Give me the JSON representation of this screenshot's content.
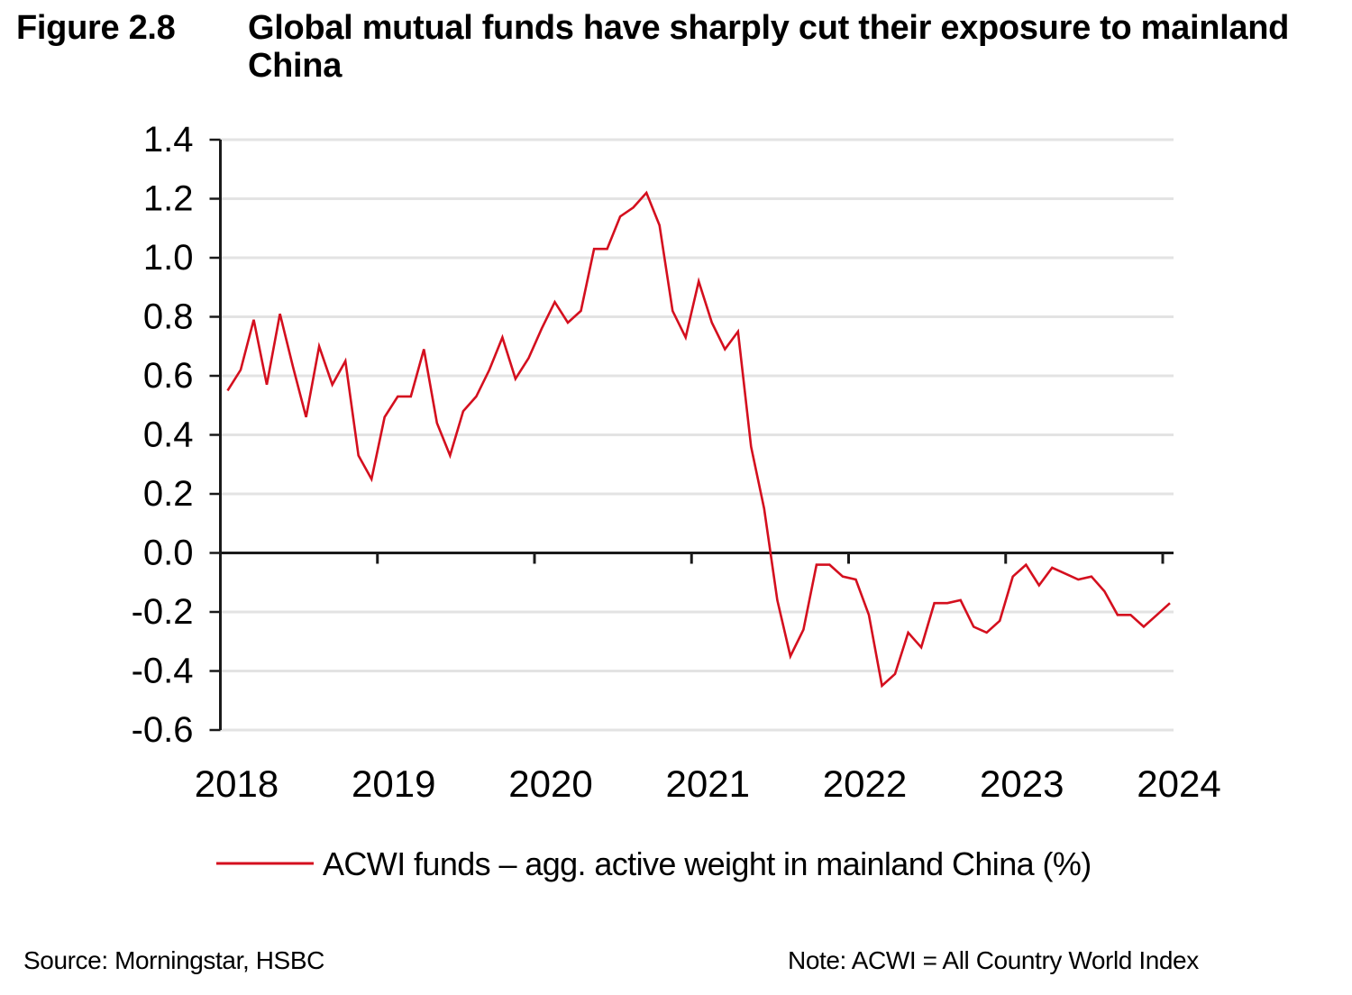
{
  "figure": {
    "number": "Figure 2.8",
    "title": "Global mutual funds have sharply cut their exposure to mainland China"
  },
  "footer": {
    "source": "Source: Morningstar, HSBC",
    "note": "Note: ACWI = All Country World Index"
  },
  "colors": {
    "series": "#d40f1e",
    "grid": "#e3e3e3",
    "axis": "#1a1a1a"
  },
  "chart_data": {
    "type": "line",
    "title": "Global mutual funds have sharply cut their exposure to mainland China",
    "xlabel": "",
    "ylabel": "",
    "ylim": [
      -0.6,
      1.4
    ],
    "yticks": [
      "1.4",
      "1.2",
      "1.0",
      "0.8",
      "0.6",
      "0.4",
      "0.2",
      "0.0",
      "-0.2",
      "-0.4",
      "-0.6"
    ],
    "ytick_values": [
      1.4,
      1.2,
      1.0,
      0.8,
      0.6,
      0.4,
      0.2,
      0.0,
      -0.2,
      -0.4,
      -0.6
    ],
    "xticks": [
      "2018",
      "2019",
      "2020",
      "2021",
      "2022",
      "2023",
      "2024"
    ],
    "xlim_months": [
      0,
      73
    ],
    "grid": true,
    "legend_position": "bottom-center",
    "x_unit": "monthly, Jan 2018 – Jan 2024",
    "series": [
      {
        "name": "ACWI funds – agg. active weight in mainland China (%)",
        "values": [
          0.55,
          0.62,
          0.79,
          0.57,
          0.81,
          0.63,
          0.46,
          0.7,
          0.57,
          0.65,
          0.33,
          0.25,
          0.46,
          0.53,
          0.53,
          0.69,
          0.44,
          0.33,
          0.48,
          0.53,
          0.62,
          0.73,
          0.59,
          0.66,
          0.76,
          0.85,
          0.78,
          0.82,
          1.03,
          1.03,
          1.14,
          1.17,
          1.22,
          1.11,
          0.82,
          0.73,
          0.92,
          0.78,
          0.69,
          0.75,
          0.36,
          0.15,
          -0.16,
          -0.35,
          -0.26,
          -0.04,
          -0.04,
          -0.08,
          -0.09,
          -0.21,
          -0.45,
          -0.41,
          -0.27,
          -0.32,
          -0.17,
          -0.17,
          -0.16,
          -0.25,
          -0.27,
          -0.23,
          -0.08,
          -0.04,
          -0.11,
          -0.05,
          -0.07,
          -0.09,
          -0.08,
          -0.13,
          -0.21,
          -0.21,
          -0.25,
          -0.21,
          -0.17
        ]
      }
    ]
  }
}
